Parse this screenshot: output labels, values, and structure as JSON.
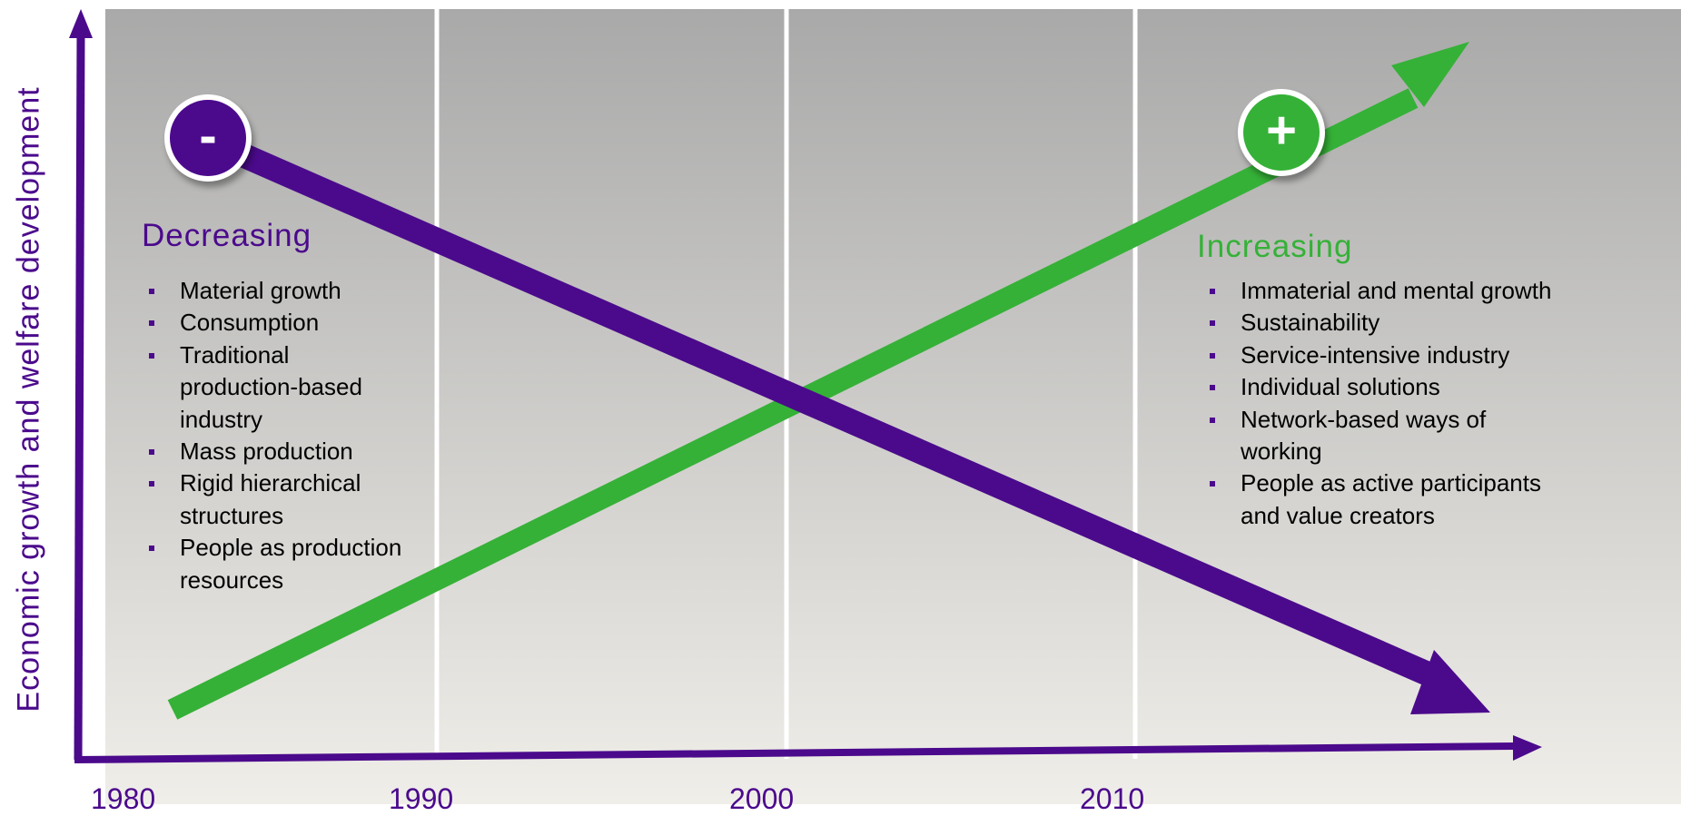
{
  "colors": {
    "purple": "#4b0a8c",
    "green": "#35b137",
    "panel_top": "#a9a9a9",
    "panel_bottom": "#f0eee9",
    "divider": "#ffffff"
  },
  "y_axis_label": "Economic growth and welfare development",
  "x_ticks": [
    "1980",
    "1990",
    "2000",
    "2010"
  ],
  "decreasing": {
    "symbol": "-",
    "heading": "Decreasing",
    "items": [
      "Material growth",
      "Consumption",
      "Traditional\nproduction-based\nindustry",
      "Mass production",
      "Rigid hierarchical\nstructures",
      "People as production\nresources"
    ]
  },
  "increasing": {
    "symbol": "+",
    "heading": "Increasing",
    "items": [
      "Immaterial and mental growth",
      "Sustainability",
      "Service-intensive industry",
      "Individual solutions",
      "Network-based ways of\nworking",
      "People as active participants\nand value creators"
    ]
  },
  "icons": {
    "y_axis_arrow": "arrow-up-icon",
    "x_axis_arrow": "arrow-right-icon",
    "decreasing_trend": "arrow-down-right-icon",
    "increasing_trend": "arrow-up-right-icon",
    "bullet": "square-bullet-icon"
  }
}
